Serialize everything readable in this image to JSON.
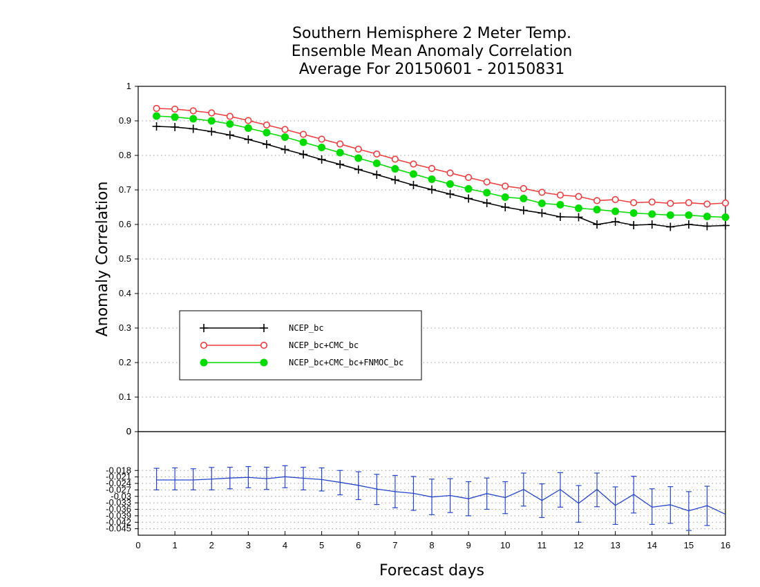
{
  "chart_data": [
    {
      "type": "line",
      "title": [
        "Southern Hemisphere 2 Meter Temp.",
        "Ensemble Mean Anomaly Correlation",
        "Average For 20150601 - 20150831"
      ],
      "xlabel": "Forecast days",
      "ylabel": "Anomaly Correlation",
      "xlim": [
        0,
        16
      ],
      "ylim": [
        0,
        1
      ],
      "xticks": [
        "0",
        "1",
        "2",
        "3",
        "4",
        "5",
        "6",
        "7",
        "8",
        "9",
        "10",
        "11",
        "12",
        "13",
        "14",
        "15",
        "16"
      ],
      "yticks": [
        "0",
        "0.1",
        "0.2",
        "0.3",
        "0.4",
        "0.5",
        "0.6",
        "0.7",
        "0.8",
        "0.9",
        "1"
      ],
      "grid": true,
      "legend": "left-middle",
      "x": [
        0.5,
        1,
        1.5,
        2,
        2.5,
        3,
        3.5,
        4,
        4.5,
        5,
        5.5,
        6,
        6.5,
        7,
        7.5,
        8,
        8.5,
        9,
        9.5,
        10,
        10.5,
        11,
        11.5,
        12,
        12.5,
        13,
        13.5,
        14,
        14.5,
        15,
        15.5,
        16
      ],
      "series": [
        {
          "name": "NCEP_bc",
          "color": "#000000",
          "marker": "plus",
          "values": [
            0.884,
            0.882,
            0.877,
            0.869,
            0.859,
            0.846,
            0.832,
            0.817,
            0.803,
            0.788,
            0.774,
            0.759,
            0.744,
            0.729,
            0.714,
            0.701,
            0.688,
            0.675,
            0.662,
            0.65,
            0.641,
            0.633,
            0.622,
            0.621,
            0.6,
            0.608,
            0.598,
            0.6,
            0.593,
            0.6,
            0.595,
            0.597
          ]
        },
        {
          "name": "NCEP_bc+CMC_bc",
          "color": "#ef3b3b",
          "marker": "open-circle",
          "values": [
            0.936,
            0.934,
            0.929,
            0.923,
            0.913,
            0.901,
            0.888,
            0.875,
            0.861,
            0.847,
            0.833,
            0.818,
            0.804,
            0.789,
            0.775,
            0.762,
            0.749,
            0.736,
            0.723,
            0.711,
            0.704,
            0.693,
            0.685,
            0.681,
            0.669,
            0.672,
            0.663,
            0.665,
            0.661,
            0.663,
            0.659,
            0.662
          ]
        },
        {
          "name": "NCEP_bc+CMC_bc+FNMOC_bc",
          "color": "#00dc00",
          "marker": "filled-circle",
          "values": [
            0.914,
            0.911,
            0.906,
            0.9,
            0.891,
            0.879,
            0.866,
            0.853,
            0.838,
            0.823,
            0.808,
            0.792,
            0.777,
            0.761,
            0.746,
            0.731,
            0.717,
            0.703,
            0.692,
            0.679,
            0.675,
            0.661,
            0.657,
            0.647,
            0.643,
            0.638,
            0.633,
            0.63,
            0.627,
            0.627,
            0.623,
            0.621
          ]
        }
      ]
    },
    {
      "type": "line",
      "xlim": [
        0,
        16
      ],
      "ylim": [
        -0.048,
        0
      ],
      "yticks": [
        "0",
        "-0.018",
        "-0.021",
        "-0.024",
        "-0.027",
        "-0.03",
        "-0.033",
        "-0.036",
        "-0.039",
        "-0.042",
        "-0.045"
      ],
      "grid": true,
      "color": "#2244cc",
      "error_bars": true,
      "x": [
        0.5,
        1,
        1.5,
        2,
        2.5,
        3,
        3.5,
        4,
        4.5,
        5,
        5.5,
        6,
        6.5,
        7,
        7.5,
        8,
        8.5,
        9,
        9.5,
        10,
        10.5,
        11,
        11.5,
        12,
        12.5,
        13,
        13.5,
        14,
        14.5,
        15,
        15.5,
        16
      ],
      "values": [
        -0.0224,
        -0.0224,
        -0.0224,
        -0.022,
        -0.0215,
        -0.0212,
        -0.0218,
        -0.0209,
        -0.0216,
        -0.0222,
        -0.0235,
        -0.0249,
        -0.0266,
        -0.0278,
        -0.0286,
        -0.0303,
        -0.0296,
        -0.0311,
        -0.0287,
        -0.0306,
        -0.0268,
        -0.0319,
        -0.0268,
        -0.0332,
        -0.0268,
        -0.0342,
        -0.0291,
        -0.035,
        -0.0339,
        -0.0367,
        -0.0343,
        -0.0383
      ],
      "err_low": [
        -0.027,
        -0.027,
        -0.027,
        -0.027,
        -0.0265,
        -0.026,
        -0.0268,
        -0.026,
        -0.027,
        -0.0275,
        -0.0293,
        -0.0315,
        -0.0338,
        -0.0353,
        -0.0365,
        -0.0385,
        -0.0375,
        -0.039,
        -0.036,
        -0.038,
        -0.0345,
        -0.0398,
        -0.035,
        -0.042,
        -0.0348,
        -0.043,
        -0.0377,
        -0.043,
        -0.0425,
        -0.0458,
        -0.0435,
        null
      ],
      "err_high": [
        -0.017,
        -0.0168,
        -0.0172,
        -0.0166,
        -0.0165,
        -0.0162,
        -0.0165,
        -0.0158,
        -0.0165,
        -0.0168,
        -0.018,
        -0.0186,
        -0.0198,
        -0.0203,
        -0.0208,
        -0.022,
        -0.0218,
        -0.0232,
        -0.0215,
        -0.0232,
        -0.0192,
        -0.0242,
        -0.019,
        -0.025,
        -0.0192,
        -0.0256,
        -0.0207,
        -0.0265,
        -0.0255,
        -0.0278,
        -0.0253,
        null
      ]
    }
  ]
}
